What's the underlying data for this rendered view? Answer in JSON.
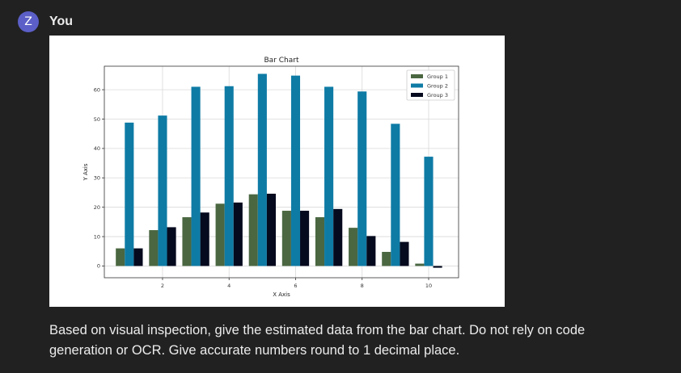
{
  "message": {
    "avatar_letter": "Z",
    "sender": "You",
    "text": "Based on visual inspection, give the estimated data from the bar chart. Do not rely on code generation or OCR. Give accurate numbers round to 1 decimal place."
  },
  "colors": {
    "background": "#212121",
    "avatar": "#5b5fc7",
    "group1": "#4a6741",
    "group2": "#0e7ba5",
    "group3": "#050a1e"
  },
  "chart_data": {
    "type": "bar",
    "title": "Bar Chart",
    "xlabel": "X Axis",
    "ylabel": "Y Axis",
    "x": [
      1,
      2,
      3,
      4,
      5,
      6,
      7,
      8,
      9,
      10
    ],
    "xticks": [
      "2",
      "4",
      "6",
      "8",
      "10"
    ],
    "yticks": [
      "0",
      "10",
      "20",
      "30",
      "40",
      "50",
      "60"
    ],
    "xlim": [
      0.25,
      10.9
    ],
    "ylim": [
      -4,
      68
    ],
    "grid": true,
    "legend_position": "top-right",
    "series": [
      {
        "name": "Group 1",
        "values": [
          6.0,
          12.2,
          16.6,
          21.2,
          24.4,
          18.8,
          16.6,
          13.0,
          4.8,
          0.8
        ]
      },
      {
        "name": "Group 2",
        "values": [
          48.8,
          51.2,
          61.0,
          61.2,
          65.4,
          64.8,
          61.0,
          59.4,
          48.4,
          37.2
        ]
      },
      {
        "name": "Group 3",
        "values": [
          6.0,
          13.2,
          18.2,
          21.6,
          24.6,
          18.8,
          19.4,
          10.2,
          8.2,
          -0.6
        ]
      }
    ]
  }
}
